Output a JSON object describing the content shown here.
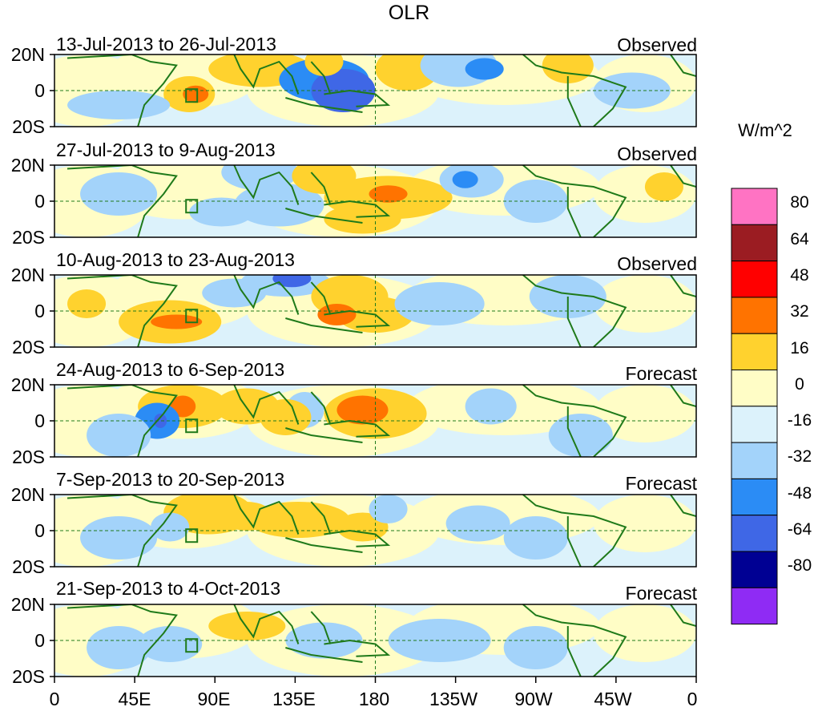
{
  "figure": {
    "title": "OLR",
    "panels": [
      {
        "date_range": "13-Jul-2013 to 26-Jul-2013",
        "kind": "Observed"
      },
      {
        "date_range": "27-Jul-2013 to 9-Aug-2013",
        "kind": "Observed"
      },
      {
        "date_range": "10-Aug-2013 to 23-Aug-2013",
        "kind": "Observed"
      },
      {
        "date_range": "24-Aug-2013 to 6-Sep-2013",
        "kind": "Forecast"
      },
      {
        "date_range": "7-Sep-2013 to 20-Sep-2013",
        "kind": "Forecast"
      },
      {
        "date_range": "21-Sep-2013 to 4-Oct-2013",
        "kind": "Forecast"
      }
    ],
    "lat_labels": [
      "20N",
      "0",
      "20S"
    ],
    "lon_labels": [
      "0",
      "45E",
      "90E",
      "135E",
      "180",
      "135W",
      "90W",
      "45W",
      "0"
    ],
    "colorbar": {
      "units": "W/m^2",
      "levels": [
        "80",
        "64",
        "48",
        "32",
        "16",
        "0",
        "-16",
        "-32",
        "-48",
        "-64",
        "-80"
      ],
      "colors": [
        "#ff73c3",
        "#9b1c22",
        "#ff0000",
        "#ff7300",
        "#ffd22e",
        "#fffdc6",
        "#dcf2fb",
        "#a3d3fa",
        "#2b8cf5",
        "#3f67e6",
        "#000093",
        "#8f2bf4"
      ]
    },
    "colors": {
      "land": "#1f7a1a",
      "guide_line": "#1f7a1a",
      "background": "#ffffff"
    }
  }
}
